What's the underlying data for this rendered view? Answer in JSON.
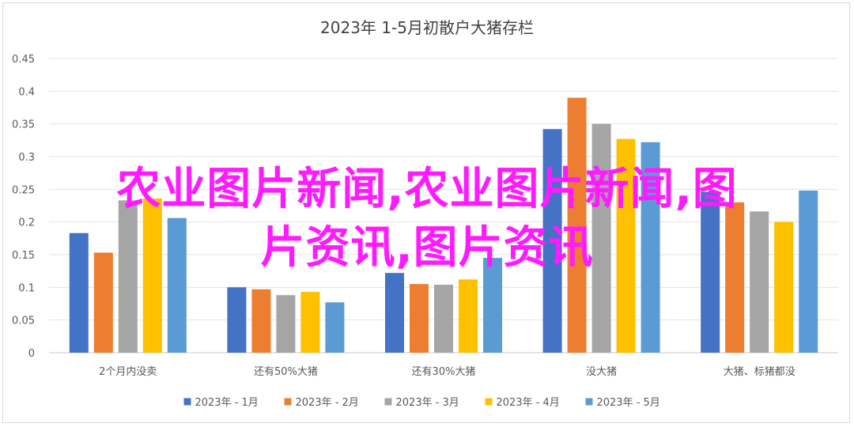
{
  "chart_data": {
    "type": "bar",
    "title": "2023年 1-5月初散户大猪存栏",
    "categories": [
      "2个月内没卖",
      "还有50%大猪",
      "还有30%大猪",
      "没大猪",
      "大猪、标猪都没"
    ],
    "series": [
      {
        "name": "2023年 - 1月",
        "color": "#4472c4",
        "values": [
          0.183,
          0.1,
          0.122,
          0.342,
          0.246
        ]
      },
      {
        "name": "2023年 - 2月",
        "color": "#ed7d31",
        "values": [
          0.153,
          0.097,
          0.105,
          0.39,
          0.23
        ]
      },
      {
        "name": "2023年 - 3月",
        "color": "#a5a5a5",
        "values": [
          0.233,
          0.088,
          0.104,
          0.35,
          0.216
        ]
      },
      {
        "name": "2023年 - 4月",
        "color": "#ffc000",
        "values": [
          0.236,
          0.093,
          0.112,
          0.327,
          0.2
        ]
      },
      {
        "name": "2023年 - 5月",
        "color": "#5b9bd5",
        "values": [
          0.206,
          0.077,
          0.145,
          0.322,
          0.248
        ]
      }
    ],
    "ylim": [
      0,
      0.45
    ],
    "yticks": [
      "0",
      "0.05",
      "0.1",
      "0.15",
      "0.2",
      "0.25",
      "0.3",
      "0.35",
      "0.4",
      "0.45"
    ],
    "grid": true,
    "legend": "bottom"
  },
  "overlay": {
    "line1": "农业图片新闻,农业图片新闻,图",
    "line2": "片资讯,图片资讯"
  }
}
